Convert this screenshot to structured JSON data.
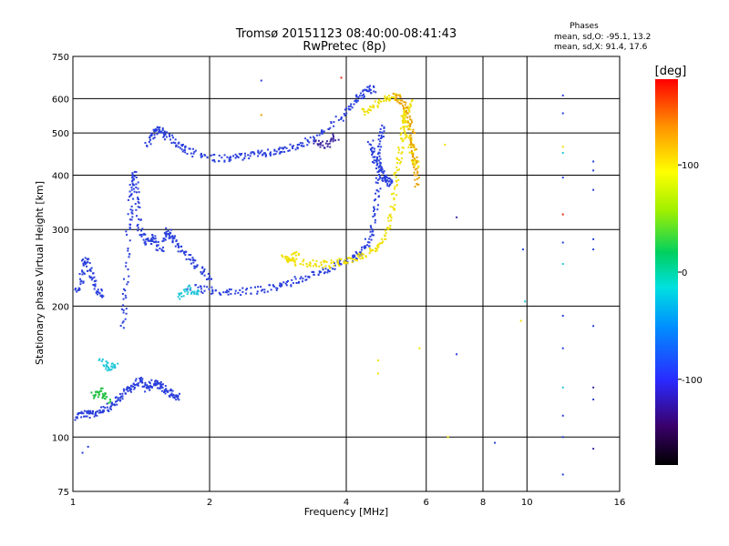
{
  "chart_data": {
    "type": "scatter",
    "title": "Tromsø 20151123 08:40:00-08:41:43",
    "subtitle": "RwPretec (8p)",
    "xlabel": "Frequency [MHz]",
    "ylabel": "Stationary phase Virtual Height [km]",
    "x_scale": "log",
    "y_scale": "log",
    "xlim": [
      1,
      16
    ],
    "ylim": [
      75,
      750
    ],
    "x_ticks": [
      1,
      2,
      4,
      6,
      8,
      10,
      16
    ],
    "y_ticks": [
      75,
      100,
      200,
      300,
      400,
      500,
      600,
      750
    ],
    "grid": true,
    "stats": {
      "title": "Phases",
      "line_o": "mean, sd,O: -95.1, 13.2",
      "line_x": "mean, sd,X:  91.4, 17.6"
    },
    "colorbar": {
      "label": "[deg]",
      "range": [
        -180,
        180
      ],
      "ticks": [
        100,
        0,
        -100
      ]
    },
    "series": [
      {
        "color": "#2a3fdc",
        "segments": [
          [
            [
              1.0,
              112
            ],
            [
              1.05,
              114
            ],
            [
              1.1,
              113
            ],
            [
              1.15,
              116
            ],
            [
              1.2,
              118
            ],
            [
              1.25,
              122
            ],
            [
              1.3,
              128
            ],
            [
              1.35,
              132
            ],
            [
              1.4,
              136
            ],
            [
              1.45,
              130
            ],
            [
              1.5,
              134
            ],
            [
              1.55,
              132
            ],
            [
              1.6,
              128
            ],
            [
              1.65,
              126
            ],
            [
              1.7,
              124
            ]
          ],
          [
            [
              1.0,
              212
            ],
            [
              1.04,
              230
            ],
            [
              1.06,
              260
            ],
            [
              1.09,
              240
            ],
            [
              1.12,
              220
            ],
            [
              1.15,
              212
            ]
          ],
          [
            [
              1.28,
              180
            ],
            [
              1.3,
              220
            ],
            [
              1.32,
              300
            ],
            [
              1.34,
              360
            ],
            [
              1.36,
              410
            ],
            [
              1.38,
              360
            ],
            [
              1.4,
              300
            ],
            [
              1.45,
              280
            ],
            [
              1.5,
              290
            ],
            [
              1.55,
              270
            ],
            [
              1.6,
              300
            ],
            [
              1.65,
              290
            ],
            [
              1.7,
              275
            ],
            [
              1.8,
              260
            ],
            [
              1.9,
              245
            ],
            [
              2.0,
              230
            ]
          ],
          [
            [
              1.45,
              470
            ],
            [
              1.5,
              505
            ],
            [
              1.55,
              510
            ],
            [
              1.6,
              495
            ],
            [
              1.7,
              470
            ],
            [
              1.8,
              455
            ],
            [
              2.0,
              440
            ],
            [
              2.2,
              440
            ],
            [
              2.4,
              445
            ],
            [
              2.6,
              450
            ],
            [
              2.8,
              455
            ],
            [
              3.0,
              465
            ],
            [
              3.3,
              480
            ],
            [
              3.6,
              510
            ],
            [
              4.0,
              560
            ],
            [
              4.2,
              600
            ],
            [
              4.4,
              630
            ],
            [
              4.6,
              635
            ]
          ],
          [
            [
              1.8,
              222
            ],
            [
              2.0,
              218
            ],
            [
              2.2,
              216
            ],
            [
              2.5,
              218
            ],
            [
              2.8,
              222
            ],
            [
              3.0,
              228
            ],
            [
              3.3,
              236
            ],
            [
              3.6,
              244
            ],
            [
              3.9,
              252
            ],
            [
              4.2,
              262
            ],
            [
              4.4,
              275
            ],
            [
              4.55,
              300
            ],
            [
              4.65,
              350
            ],
            [
              4.7,
              420
            ],
            [
              4.75,
              480
            ],
            [
              4.8,
              530
            ]
          ],
          [
            [
              4.5,
              480
            ],
            [
              4.6,
              440
            ],
            [
              4.7,
              420
            ],
            [
              4.8,
              400
            ],
            [
              4.9,
              390
            ],
            [
              5.0,
              380
            ]
          ]
        ]
      },
      {
        "color": "#f0e000",
        "segments": [
          [
            [
              3.0,
              255
            ],
            [
              3.3,
              252
            ],
            [
              3.6,
              250
            ],
            [
              3.9,
              255
            ],
            [
              4.2,
              260
            ],
            [
              4.5,
              268
            ],
            [
              4.8,
              285
            ],
            [
              5.0,
              320
            ],
            [
              5.1,
              380
            ],
            [
              5.2,
              440
            ],
            [
              5.3,
              500
            ],
            [
              5.4,
              560
            ],
            [
              5.5,
              590
            ]
          ],
          [
            [
              5.3,
              560
            ],
            [
              5.4,
              520
            ],
            [
              5.5,
              480
            ],
            [
              5.6,
              440
            ],
            [
              5.7,
              420
            ]
          ],
          [
            [
              4.3,
              560
            ],
            [
              4.6,
              580
            ],
            [
              4.9,
              600
            ],
            [
              5.2,
              610
            ]
          ],
          [
            [
              2.9,
              262
            ],
            [
              3.0,
              258
            ],
            [
              3.1,
              264
            ]
          ]
        ]
      },
      {
        "color": "#e8a000",
        "segments": [
          [
            [
              5.1,
              610
            ],
            [
              5.3,
              590
            ],
            [
              5.5,
              540
            ],
            [
              5.6,
              480
            ],
            [
              5.65,
              420
            ],
            [
              5.7,
              380
            ]
          ]
        ]
      },
      {
        "color": "#22c8d8",
        "segments": [
          [
            [
              1.15,
              150
            ],
            [
              1.2,
              145
            ],
            [
              1.25,
              148
            ]
          ],
          [
            [
              1.7,
              210
            ],
            [
              1.8,
              220
            ],
            [
              1.9,
              215
            ]
          ]
        ]
      },
      {
        "color": "#20c040",
        "segments": [
          [
            [
              1.1,
              125
            ],
            [
              1.15,
              128
            ],
            [
              1.2,
              122
            ]
          ]
        ]
      },
      {
        "color": "#4028a0",
        "segments": [
          [
            [
              3.4,
              480
            ],
            [
              3.6,
              470
            ],
            [
              3.8,
              495
            ]
          ]
        ]
      }
    ],
    "scattered_points": [
      {
        "x": 12.0,
        "y": 610,
        "color": "#2a3fdc"
      },
      {
        "x": 12.0,
        "y": 555,
        "color": "#2a3fdc"
      },
      {
        "x": 12.0,
        "y": 450,
        "color": "#22c8d8"
      },
      {
        "x": 12.0,
        "y": 465,
        "color": "#f0e000"
      },
      {
        "x": 12.0,
        "y": 395,
        "color": "#2a3fdc"
      },
      {
        "x": 12.0,
        "y": 325,
        "color": "#e03010"
      },
      {
        "x": 12.0,
        "y": 280,
        "color": "#2a3fdc"
      },
      {
        "x": 12.0,
        "y": 250,
        "color": "#22c8d8"
      },
      {
        "x": 12.0,
        "y": 190,
        "color": "#2a3fdc"
      },
      {
        "x": 12.0,
        "y": 160,
        "color": "#2a3fdc"
      },
      {
        "x": 12.0,
        "y": 130,
        "color": "#22c8d8"
      },
      {
        "x": 12.0,
        "y": 112,
        "color": "#2a3fdc"
      },
      {
        "x": 12.0,
        "y": 100,
        "color": "#2a3fdc"
      },
      {
        "x": 12.0,
        "y": 82,
        "color": "#2a3fdc"
      },
      {
        "x": 14.0,
        "y": 430,
        "color": "#2a3fdc"
      },
      {
        "x": 14.0,
        "y": 410,
        "color": "#2a3fdc"
      },
      {
        "x": 14.0,
        "y": 370,
        "color": "#2a3fdc"
      },
      {
        "x": 14.0,
        "y": 285,
        "color": "#2a3fdc"
      },
      {
        "x": 14.0,
        "y": 270,
        "color": "#2a3fdc"
      },
      {
        "x": 14.0,
        "y": 180,
        "color": "#2a3fdc"
      },
      {
        "x": 14.0,
        "y": 130,
        "color": "#4028a0"
      },
      {
        "x": 14.0,
        "y": 122,
        "color": "#2a3fdc"
      },
      {
        "x": 14.0,
        "y": 94,
        "color": "#4028a0"
      },
      {
        "x": 9.8,
        "y": 270,
        "color": "#2a3fdc"
      },
      {
        "x": 9.9,
        "y": 205,
        "color": "#22c8d8"
      },
      {
        "x": 9.7,
        "y": 185,
        "color": "#f0e000"
      },
      {
        "x": 7.0,
        "y": 320,
        "color": "#4028a0"
      },
      {
        "x": 7.0,
        "y": 155,
        "color": "#2a3fdc"
      },
      {
        "x": 6.6,
        "y": 470,
        "color": "#f0e000"
      },
      {
        "x": 6.7,
        "y": 100,
        "color": "#f0e000"
      },
      {
        "x": 5.8,
        "y": 160,
        "color": "#f0e000"
      },
      {
        "x": 8.5,
        "y": 97,
        "color": "#2a3fdc"
      },
      {
        "x": 2.6,
        "y": 660,
        "color": "#2a3fdc"
      },
      {
        "x": 2.6,
        "y": 550,
        "color": "#e8a000"
      },
      {
        "x": 3.9,
        "y": 670,
        "color": "#e03010"
      },
      {
        "x": 4.7,
        "y": 150,
        "color": "#f0e000"
      },
      {
        "x": 4.7,
        "y": 140,
        "color": "#f0e000"
      },
      {
        "x": 1.05,
        "y": 92,
        "color": "#2a3fdc"
      },
      {
        "x": 1.08,
        "y": 95,
        "color": "#2a3fdc"
      }
    ]
  }
}
